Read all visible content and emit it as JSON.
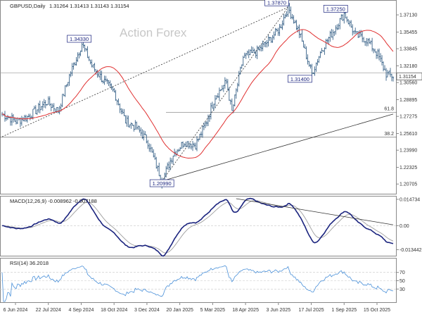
{
  "chart_data": [
    {
      "type": "candlestick",
      "instrument_label": "GBPUSD,Daily",
      "ohlc_label": "1.31264 1.31413 1.31143 1.31154",
      "watermark": "Action Forex",
      "ylim": [
        1.199,
        1.383
      ],
      "y_ticks": [
        "1.37130",
        "1.35455",
        "1.33845",
        "1.32180",
        "1.30560",
        "1.28895",
        "1.27275",
        "1.25610",
        "1.23990",
        "1.22325",
        "1.20705"
      ],
      "x_ticks": [
        "6 Jun 2024",
        "22 Jul 2024",
        "4 Sep 2024",
        "18 Oct 2024",
        "3 Dec 2024",
        "20 Jan 2025",
        "5 Mar 2025",
        "18 Apr 2025",
        "3 Jun 2025",
        "17 Jul 2025",
        "1 Sep 2025",
        "15 Oct 2025"
      ],
      "last_price": "1.31154",
      "annotations": [
        {
          "label": "1.34330",
          "index": 57,
          "value": 1.3433
        },
        {
          "label": "1.20990",
          "index": 114,
          "value": 1.2099
        },
        {
          "label": "1.37870",
          "index": 204,
          "value": 1.3787
        },
        {
          "label": "1.31400",
          "index": 221,
          "value": 1.314
        },
        {
          "label": "1.37250",
          "index": 244,
          "value": 1.3725
        }
      ],
      "fib_levels": [
        {
          "label": "61.8",
          "value": 1.2768
        },
        {
          "label": "38.2",
          "value": 1.2525
        }
      ],
      "series": [
        {
          "kind": "ohlc",
          "color": "#1f4e79",
          "values": []
        },
        {
          "kind": "moving-average",
          "color": "#e03030",
          "values": []
        }
      ],
      "trendlines": [
        {
          "style": "dashed",
          "points": [
            [
              0,
              1.253
            ],
            [
              204,
              1.3787
            ]
          ]
        },
        {
          "style": "dashed",
          "points": [
            [
              114,
              1.2099
            ],
            [
              204,
              1.3787
            ]
          ]
        },
        {
          "style": "solid",
          "points": [
            [
              114,
              1.2099
            ],
            [
              279,
              1.275
            ]
          ]
        }
      ],
      "horizontal_lines": [
        1.315
      ]
    },
    {
      "type": "line",
      "label": "MACD(12,26,9) -0.008962 -0.007188",
      "ylim": [
        -0.016,
        0.0155
      ],
      "y_ticks": [
        "0.014734",
        "0.00",
        "-0.013442"
      ],
      "series": [
        {
          "name": "MACD",
          "color": "#1a237e",
          "values": []
        },
        {
          "name": "Signal",
          "color": "#9e9e9e",
          "values": []
        }
      ],
      "trendline": [
        [
          167,
          0.0151
        ],
        [
          279,
          0.0005
        ]
      ]
    },
    {
      "type": "line",
      "label": "RSI(14) 36.2018",
      "ylim": [
        0,
        100
      ],
      "y_ticks": [
        "70",
        "50",
        "30"
      ],
      "series": [
        {
          "name": "RSI",
          "color": "#4a90d9",
          "values": []
        }
      ]
    }
  ]
}
